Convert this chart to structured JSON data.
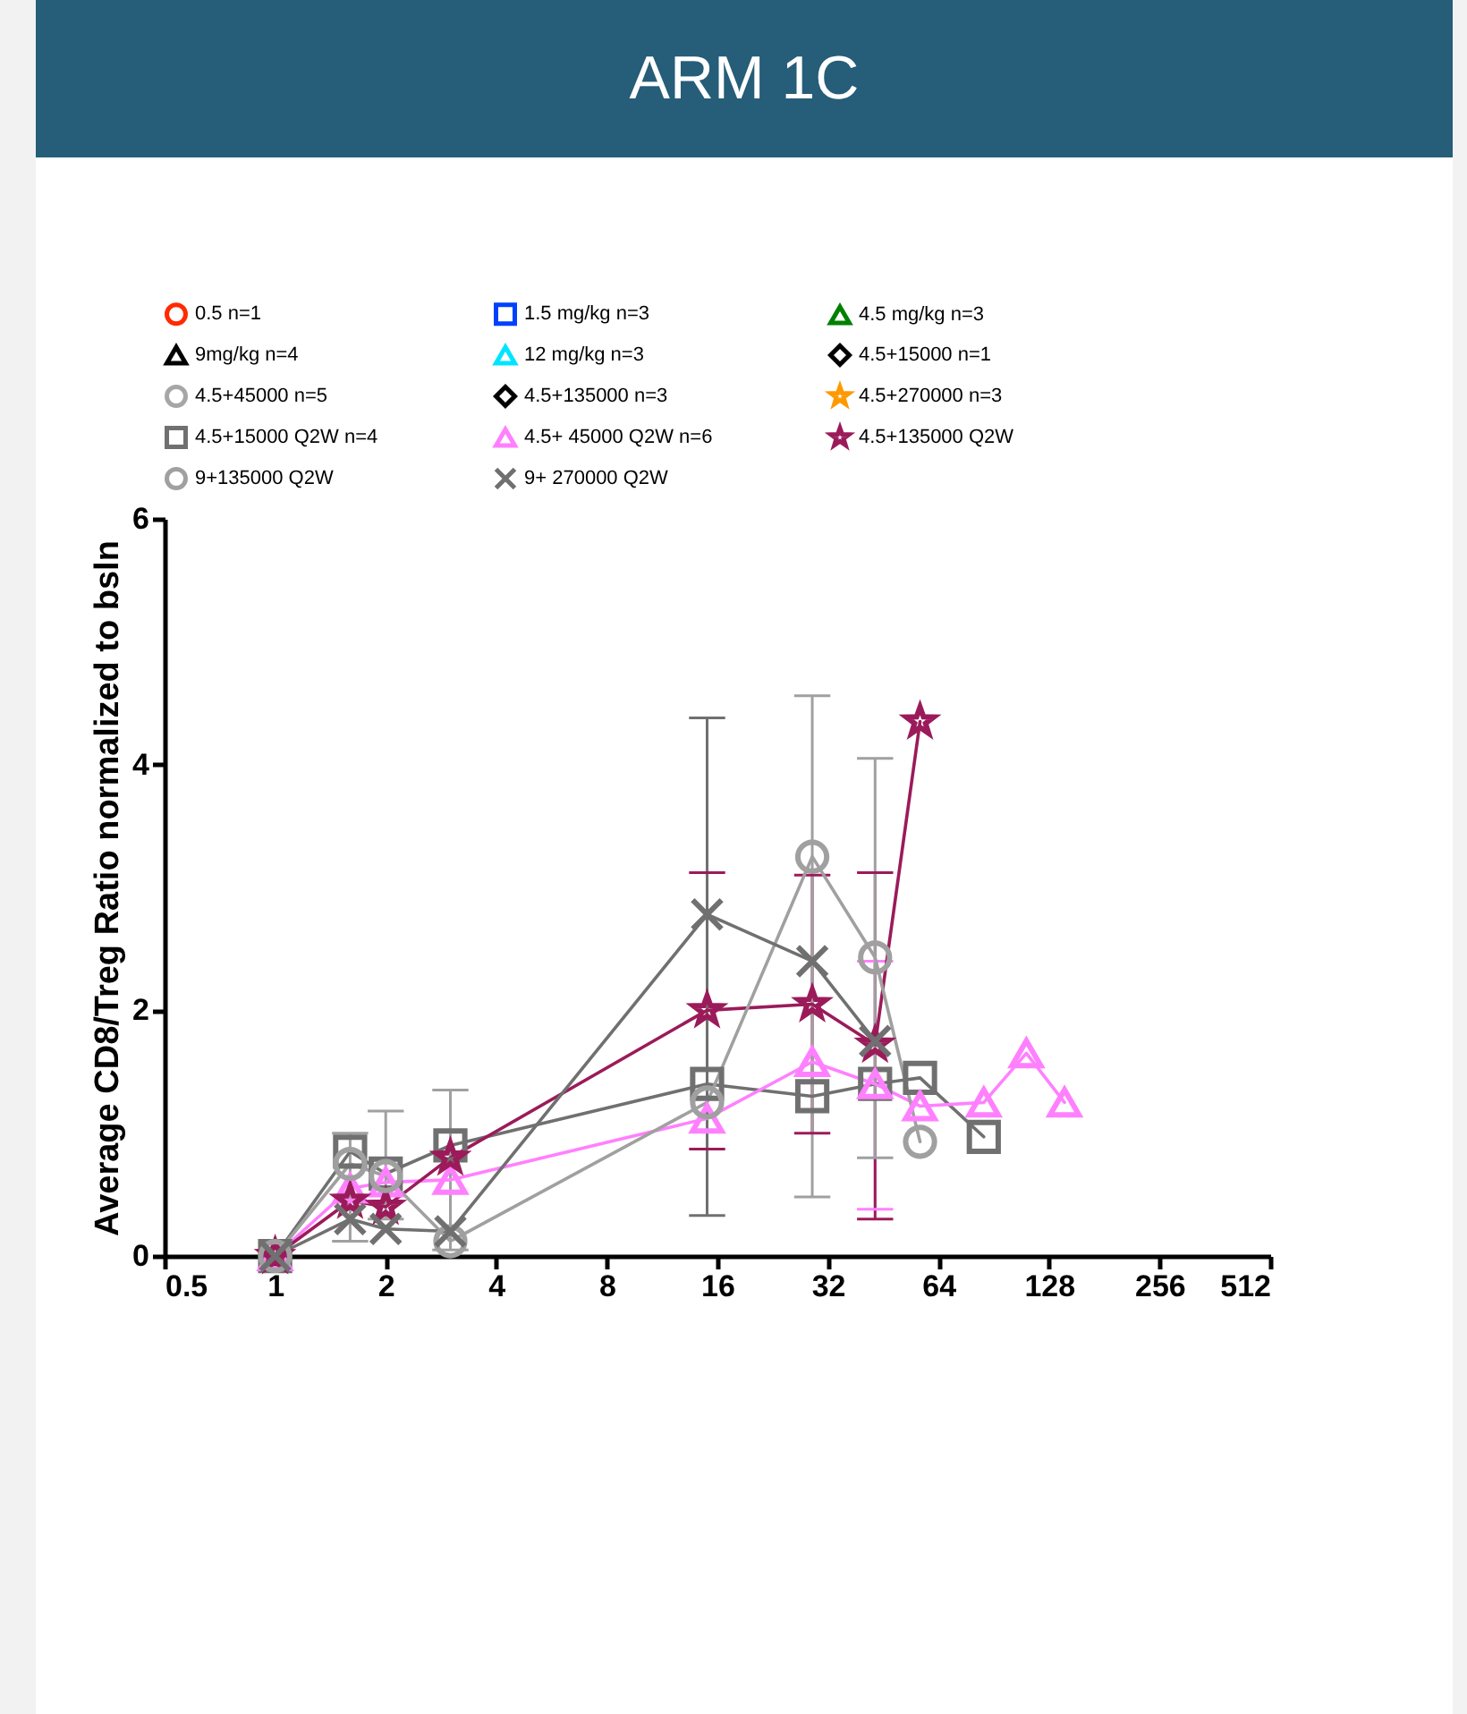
{
  "chart_data": {
    "type": "line",
    "title": "ARM 1C",
    "ylabel": "Average CD8/Treg Ratio normalized to bsln",
    "x": [
      1,
      1.6,
      2,
      3,
      15,
      29,
      43,
      57,
      85,
      111,
      141
    ],
    "xlim": [
      0.5,
      512
    ],
    "xticks": [
      0.5,
      1,
      2,
      4,
      8,
      16,
      32,
      64,
      128,
      256,
      512
    ],
    "log": "x",
    "ylim": [
      0,
      6
    ],
    "yticks": [
      0,
      2,
      4,
      6
    ],
    "grid": false,
    "legend": "top",
    "line_style": "solid",
    "series": [
      {
        "name": "0.5 n=1",
        "color": "#ff2a00",
        "marker": "circle",
        "values": [
          null,
          null,
          null,
          null,
          null,
          null,
          null,
          null,
          null,
          null,
          null
        ]
      },
      {
        "name": "1.5 mg/kg n=3",
        "color": "#0040ff",
        "marker": "square",
        "values": [
          null,
          null,
          null,
          null,
          null,
          null,
          null,
          null,
          null,
          null,
          null
        ]
      },
      {
        "name": "4.5 mg/kg n=3",
        "color": "#008000",
        "marker": "triangle",
        "values": [
          null,
          null,
          null,
          null,
          null,
          null,
          null,
          null,
          null,
          null,
          null
        ]
      },
      {
        "name": "9mg/kg n=4",
        "color": "#000000",
        "marker": "triangle",
        "values": [
          null,
          null,
          null,
          null,
          null,
          null,
          null,
          null,
          null,
          null,
          null
        ]
      },
      {
        "name": "12 mg/kg n=3",
        "color": "#00e5ff",
        "marker": "triangle",
        "values": [
          null,
          null,
          null,
          null,
          null,
          null,
          null,
          null,
          null,
          null,
          null
        ]
      },
      {
        "name": "4.5+15000 n=1",
        "color": "#000000",
        "marker": "diamond",
        "values": [
          null,
          null,
          null,
          null,
          null,
          null,
          null,
          null,
          null,
          null,
          null
        ]
      },
      {
        "name": "4.5+45000 n=5",
        "color": "#a6a6a6",
        "marker": "circle",
        "values": [
          null,
          null,
          null,
          null,
          null,
          null,
          null,
          null,
          null,
          null,
          null
        ]
      },
      {
        "name": "4.5+135000 n=3",
        "color": "#000000",
        "marker": "diamond",
        "values": [
          null,
          null,
          null,
          null,
          null,
          null,
          null,
          null,
          null,
          null,
          null
        ]
      },
      {
        "name": "4.5+270000 n=3",
        "color": "#ff9900",
        "marker": "star",
        "values": [
          null,
          null,
          null,
          null,
          null,
          null,
          null,
          null,
          null,
          null,
          null
        ]
      },
      {
        "name": "4.5+15000 Q2W n=4",
        "color": "#707070",
        "marker": "square",
        "values": [
          0,
          0.85,
          0.67,
          0.9,
          1.4,
          1.3,
          1.4,
          1.45,
          0.97,
          null,
          null
        ]
      },
      {
        "name": "4.5+ 45000 Q2W n=6",
        "color": "#ff80ff",
        "marker": "triangle",
        "values": [
          0,
          0.55,
          0.6,
          0.62,
          1.12,
          1.58,
          1.4,
          1.22,
          1.25,
          1.65,
          1.25
        ],
        "errors": [
          null,
          null,
          null,
          null,
          null,
          null,
          [
            0.38,
            2.4
          ],
          null,
          null,
          null,
          null
        ]
      },
      {
        "name": "4.5+135000  Q2W",
        "color": "#9b1b5a",
        "marker": "star",
        "values": [
          0,
          0.45,
          0.4,
          0.8,
          2.0,
          2.05,
          1.72,
          4.35,
          null,
          null,
          null
        ],
        "errors": [
          null,
          null,
          null,
          null,
          [
            0.87,
            3.12
          ],
          [
            1.0,
            3.1
          ],
          [
            0.3,
            3.12
          ],
          null,
          null,
          null,
          null
        ]
      },
      {
        "name": "9+135000 Q2W",
        "color": "#a0a0a0",
        "marker": "circle",
        "values": [
          0,
          0.75,
          0.65,
          0.12,
          1.25,
          3.25,
          2.43,
          0.93,
          null,
          null,
          null
        ],
        "errors": [
          null,
          [
            0.12,
            1.0
          ],
          [
            0.3,
            1.18
          ],
          [
            0.05,
            1.35
          ],
          null,
          [
            0.48,
            4.56
          ],
          [
            0.8,
            4.05
          ],
          null,
          null,
          null,
          null
        ]
      },
      {
        "name": "9+ 270000 Q2W",
        "color": "#707070",
        "marker": "cross",
        "values": [
          0,
          0.3,
          0.22,
          0.2,
          2.78,
          2.4,
          1.75,
          null,
          null,
          null,
          null
        ],
        "errors": [
          null,
          null,
          null,
          null,
          [
            0.33,
            4.38
          ],
          null,
          null,
          null,
          null,
          null,
          null
        ]
      }
    ]
  }
}
